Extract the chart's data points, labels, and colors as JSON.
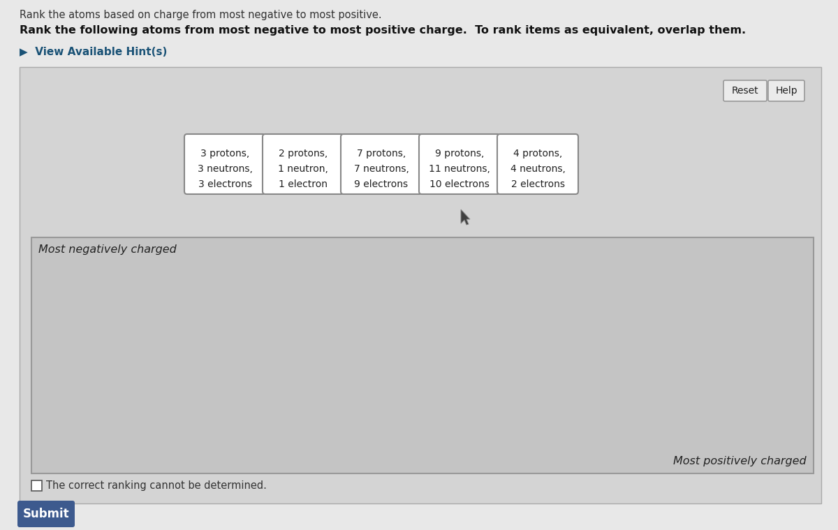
{
  "title_top": "Rank the atoms based on charge from most negative to most positive.",
  "title_bold_part1": "Rank the following atoms from most negative to most positive charge.",
  "title_bold_part2": "To rank items as equivalent, overlap them.",
  "hint_text": "▶  View Available Hint(s)",
  "outer_bg": "#e8e8e8",
  "panel_bg": "#d4d4d4",
  "panel_border": "#aaaaaa",
  "card_bg": "#ffffff",
  "card_border": "#888888",
  "atoms": [
    [
      "3 protons,",
      "3 neutrons,",
      "3 electrons"
    ],
    [
      "2 protons,",
      "1 neutron,",
      "1 electron"
    ],
    [
      "7 protons,",
      "7 neutrons,",
      "9 electrons"
    ],
    [
      "9 protons,",
      "11 neutrons,",
      "10 electrons"
    ],
    [
      "4 protons,",
      "4 neutrons,",
      "2 electrons"
    ]
  ],
  "most_negative_label": "Most negatively charged",
  "most_positive_label": "Most positively charged",
  "checkbox_text": "The correct ranking cannot be determined.",
  "submit_text": "Submit",
  "submit_bg": "#3d5a8e",
  "submit_text_color": "#ffffff",
  "reset_text": "Reset",
  "help_text": "Help",
  "button_bg": "#ebebeb",
  "button_border": "#999999",
  "hint_color": "#1a5276",
  "ranking_area_bg": "#c4c4c4",
  "ranking_area_border": "#999999",
  "top_bg": "#e8e8e8",
  "title_color": "#111111",
  "hint_arrow_color": "#1a5276"
}
